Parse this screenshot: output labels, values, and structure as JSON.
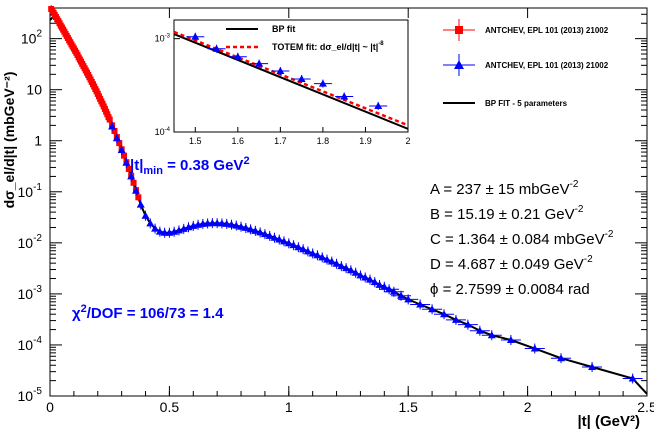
{
  "chart_data": {
    "type": "scatter",
    "xlabel": "|t| (GeV²)",
    "ylabel": "dσ_el/d|t| (mbGeV⁻²)",
    "xlim": [
      0,
      2.5
    ],
    "ylim_log10": [
      -5,
      2.6
    ],
    "x_ticks": [
      {
        "v": 0,
        "label": "0"
      },
      {
        "v": 0.5,
        "label": "0.5"
      },
      {
        "v": 1,
        "label": "1"
      },
      {
        "v": 1.5,
        "label": "1.5"
      },
      {
        "v": 2,
        "label": "2"
      },
      {
        "v": 2.5,
        "label": "2.5"
      }
    ],
    "y_ticks": [
      {
        "e": 2,
        "mant": "10",
        "exp": "2"
      },
      {
        "e": 1,
        "mant": "10",
        "exp": ""
      },
      {
        "e": 0,
        "mant": "1",
        "exp": ""
      },
      {
        "e": -1,
        "mant": "10",
        "exp": "-1"
      },
      {
        "e": -2,
        "mant": "10",
        "exp": "-2"
      },
      {
        "e": -3,
        "mant": "10",
        "exp": "-3"
      },
      {
        "e": -4,
        "mant": "10",
        "exp": "-4"
      },
      {
        "e": -5,
        "mant": "10",
        "exp": "-5"
      }
    ],
    "series": [
      {
        "name": "ANTCHEV, EPL 101 (2013) 21002",
        "marker": "square",
        "color": "#ff0000",
        "points": [
          [
            0.005,
            380
          ],
          [
            0.01,
            350
          ],
          [
            0.015,
            320
          ],
          [
            0.02,
            290
          ],
          [
            0.025,
            265
          ],
          [
            0.03,
            240
          ],
          [
            0.035,
            220
          ],
          [
            0.04,
            200
          ],
          [
            0.045,
            180
          ],
          [
            0.05,
            165
          ],
          [
            0.055,
            150
          ],
          [
            0.06,
            137
          ],
          [
            0.065,
            124
          ],
          [
            0.07,
            113
          ],
          [
            0.075,
            103
          ],
          [
            0.08,
            93
          ],
          [
            0.085,
            85
          ],
          [
            0.09,
            77
          ],
          [
            0.095,
            70
          ],
          [
            0.1,
            64
          ],
          [
            0.105,
            58
          ],
          [
            0.11,
            53
          ],
          [
            0.115,
            48
          ],
          [
            0.12,
            43
          ],
          [
            0.125,
            39
          ],
          [
            0.13,
            35.5
          ],
          [
            0.135,
            32
          ],
          [
            0.14,
            29
          ],
          [
            0.145,
            26.3
          ],
          [
            0.15,
            23.8
          ],
          [
            0.155,
            21.5
          ],
          [
            0.16,
            19.4
          ],
          [
            0.165,
            17.5
          ],
          [
            0.17,
            15.8
          ],
          [
            0.175,
            14.2
          ],
          [
            0.18,
            12.8
          ],
          [
            0.185,
            11.5
          ],
          [
            0.19,
            10.3
          ],
          [
            0.195,
            9.3
          ],
          [
            0.2,
            8.3
          ],
          [
            0.205,
            7.4
          ],
          [
            0.21,
            6.6
          ],
          [
            0.215,
            5.9
          ],
          [
            0.22,
            5.3
          ],
          [
            0.225,
            4.7
          ],
          [
            0.23,
            4.2
          ],
          [
            0.235,
            3.7
          ],
          [
            0.24,
            3.3
          ],
          [
            0.245,
            2.9
          ],
          [
            0.25,
            2.6
          ],
          [
            0.26,
            2.0
          ],
          [
            0.27,
            1.55
          ],
          [
            0.28,
            1.18
          ],
          [
            0.29,
            0.9
          ],
          [
            0.3,
            0.68
          ],
          [
            0.31,
            0.51
          ],
          [
            0.32,
            0.38
          ],
          [
            0.33,
            0.28
          ],
          [
            0.34,
            0.205
          ],
          [
            0.35,
            0.15
          ],
          [
            0.36,
            0.108
          ],
          [
            0.37,
            0.078
          ]
        ]
      },
      {
        "name": "ANTCHEV, EPL 101 (2013) 21002",
        "marker": "triangle",
        "color": "#0000ff",
        "points": [
          [
            0.26,
            1.9
          ],
          [
            0.28,
            1.12
          ],
          [
            0.3,
            0.66
          ],
          [
            0.32,
            0.37
          ],
          [
            0.34,
            0.2
          ],
          [
            0.36,
            0.105
          ],
          [
            0.38,
            0.056
          ],
          [
            0.4,
            0.034
          ],
          [
            0.42,
            0.024
          ],
          [
            0.44,
            0.019
          ],
          [
            0.46,
            0.0166
          ],
          [
            0.48,
            0.0158
          ],
          [
            0.5,
            0.0158
          ],
          [
            0.52,
            0.0165
          ],
          [
            0.54,
            0.0175
          ],
          [
            0.56,
            0.0188
          ],
          [
            0.58,
            0.0202
          ],
          [
            0.6,
            0.0215
          ],
          [
            0.62,
            0.0226
          ],
          [
            0.64,
            0.0235
          ],
          [
            0.66,
            0.024
          ],
          [
            0.68,
            0.0243
          ],
          [
            0.7,
            0.0243
          ],
          [
            0.72,
            0.024
          ],
          [
            0.74,
            0.0235
          ],
          [
            0.76,
            0.0227
          ],
          [
            0.78,
            0.0218
          ],
          [
            0.8,
            0.0207
          ],
          [
            0.82,
            0.0196
          ],
          [
            0.84,
            0.0184
          ],
          [
            0.86,
            0.0172
          ],
          [
            0.88,
            0.016
          ],
          [
            0.9,
            0.0148
          ],
          [
            0.92,
            0.0137
          ],
          [
            0.94,
            0.0126
          ],
          [
            0.96,
            0.0116
          ],
          [
            0.98,
            0.0107
          ],
          [
            1.0,
            0.0098
          ],
          [
            1.02,
            0.009
          ],
          [
            1.04,
            0.0082
          ],
          [
            1.06,
            0.0075
          ],
          [
            1.08,
            0.0068
          ],
          [
            1.1,
            0.0062
          ],
          [
            1.12,
            0.0057
          ],
          [
            1.14,
            0.0052
          ],
          [
            1.16,
            0.0047
          ],
          [
            1.18,
            0.0043
          ],
          [
            1.2,
            0.0039
          ],
          [
            1.22,
            0.0035
          ],
          [
            1.24,
            0.0032
          ],
          [
            1.26,
            0.0029
          ],
          [
            1.28,
            0.0026
          ],
          [
            1.3,
            0.0023
          ],
          [
            1.32,
            0.0021
          ],
          [
            1.34,
            0.0019
          ],
          [
            1.36,
            0.0017
          ],
          [
            1.38,
            0.0015
          ],
          [
            1.4,
            0.00138
          ],
          [
            1.42,
            0.00123
          ],
          [
            1.44,
            0.0011
          ],
          [
            1.47,
            0.00092
          ],
          [
            1.5,
            0.00078
          ],
          [
            1.55,
            0.00062
          ],
          [
            1.6,
            0.0005
          ],
          [
            1.65,
            0.0004
          ],
          [
            1.7,
            0.00031
          ],
          [
            1.75,
            0.00025
          ],
          [
            1.8,
            0.00019
          ],
          [
            1.85,
            0.000155
          ],
          [
            1.93,
            0.000125
          ],
          [
            2.03,
            8.5e-05
          ],
          [
            2.14,
            5.5e-05
          ],
          [
            2.27,
            3.7e-05
          ],
          [
            2.44,
            2.2e-05
          ]
        ]
      }
    ],
    "fit_line": {
      "name": "BP FIT - 5 parameters",
      "color": "#000000"
    },
    "legend": [
      {
        "label": "ANTCHEV, EPL 101 (2013) 21002",
        "marker": "square",
        "color": "#ff0000"
      },
      {
        "label": "ANTCHEV, EPL 101 (2013) 21002",
        "marker": "triangle",
        "color": "#0000ff"
      },
      {
        "label": "BP FIT - 5 parameters",
        "marker": "line",
        "color": "#000000"
      }
    ],
    "annotations": {
      "tmin": {
        "pre": "|t|",
        "sub": "min",
        "mid": " = 0.38 GeV",
        "sup": "2",
        "color": "#0000ff"
      },
      "chi2": {
        "pre": "χ",
        "sup": "2",
        "post": "/DOF = 106/73 = 1.4",
        "color": "#0000ff"
      },
      "params": [
        {
          "text": "A = 237 ± 15   mbGeV",
          "sup": "-2"
        },
        {
          "text": "B = 15.19 ± 0.21 GeV",
          "sup": "-2"
        },
        {
          "text": "C = 1.364 ± 0.084 mbGeV",
          "sup": "-2"
        },
        {
          "text": "D = 4.687 ± 0.049 GeV",
          "sup": "-2"
        },
        {
          "text": "ϕ = 2.7599 ± 0.0084 rad",
          "sup": ""
        }
      ]
    },
    "inset": {
      "xlim": [
        1.45,
        2.0
      ],
      "ylim_log10": [
        -4,
        -2.8
      ],
      "x_ticks": [
        "1.5",
        "1.6",
        "1.7",
        "1.8",
        "1.9",
        "2"
      ],
      "y_ticks": [
        {
          "e": -3,
          "mant": "10",
          "exp": "-3"
        },
        {
          "e": -4,
          "mant": "10",
          "exp": "-4"
        }
      ],
      "legend": [
        {
          "label": "BP fit",
          "style": "solid",
          "color": "#000000"
        },
        {
          "label": "TOTEM fit: dσ_el/d|t| ~ |t|",
          "sup": "-8",
          "style": "dashed",
          "color": "#ff0000"
        }
      ],
      "points": [
        [
          1.5,
          0.00105
        ],
        [
          1.55,
          0.00078
        ],
        [
          1.6,
          0.00064
        ],
        [
          1.65,
          0.00054
        ],
        [
          1.7,
          0.00045
        ],
        [
          1.75,
          0.00037
        ],
        [
          1.8,
          0.00033
        ],
        [
          1.85,
          0.00024
        ],
        [
          1.93,
          0.00019
        ]
      ]
    }
  }
}
